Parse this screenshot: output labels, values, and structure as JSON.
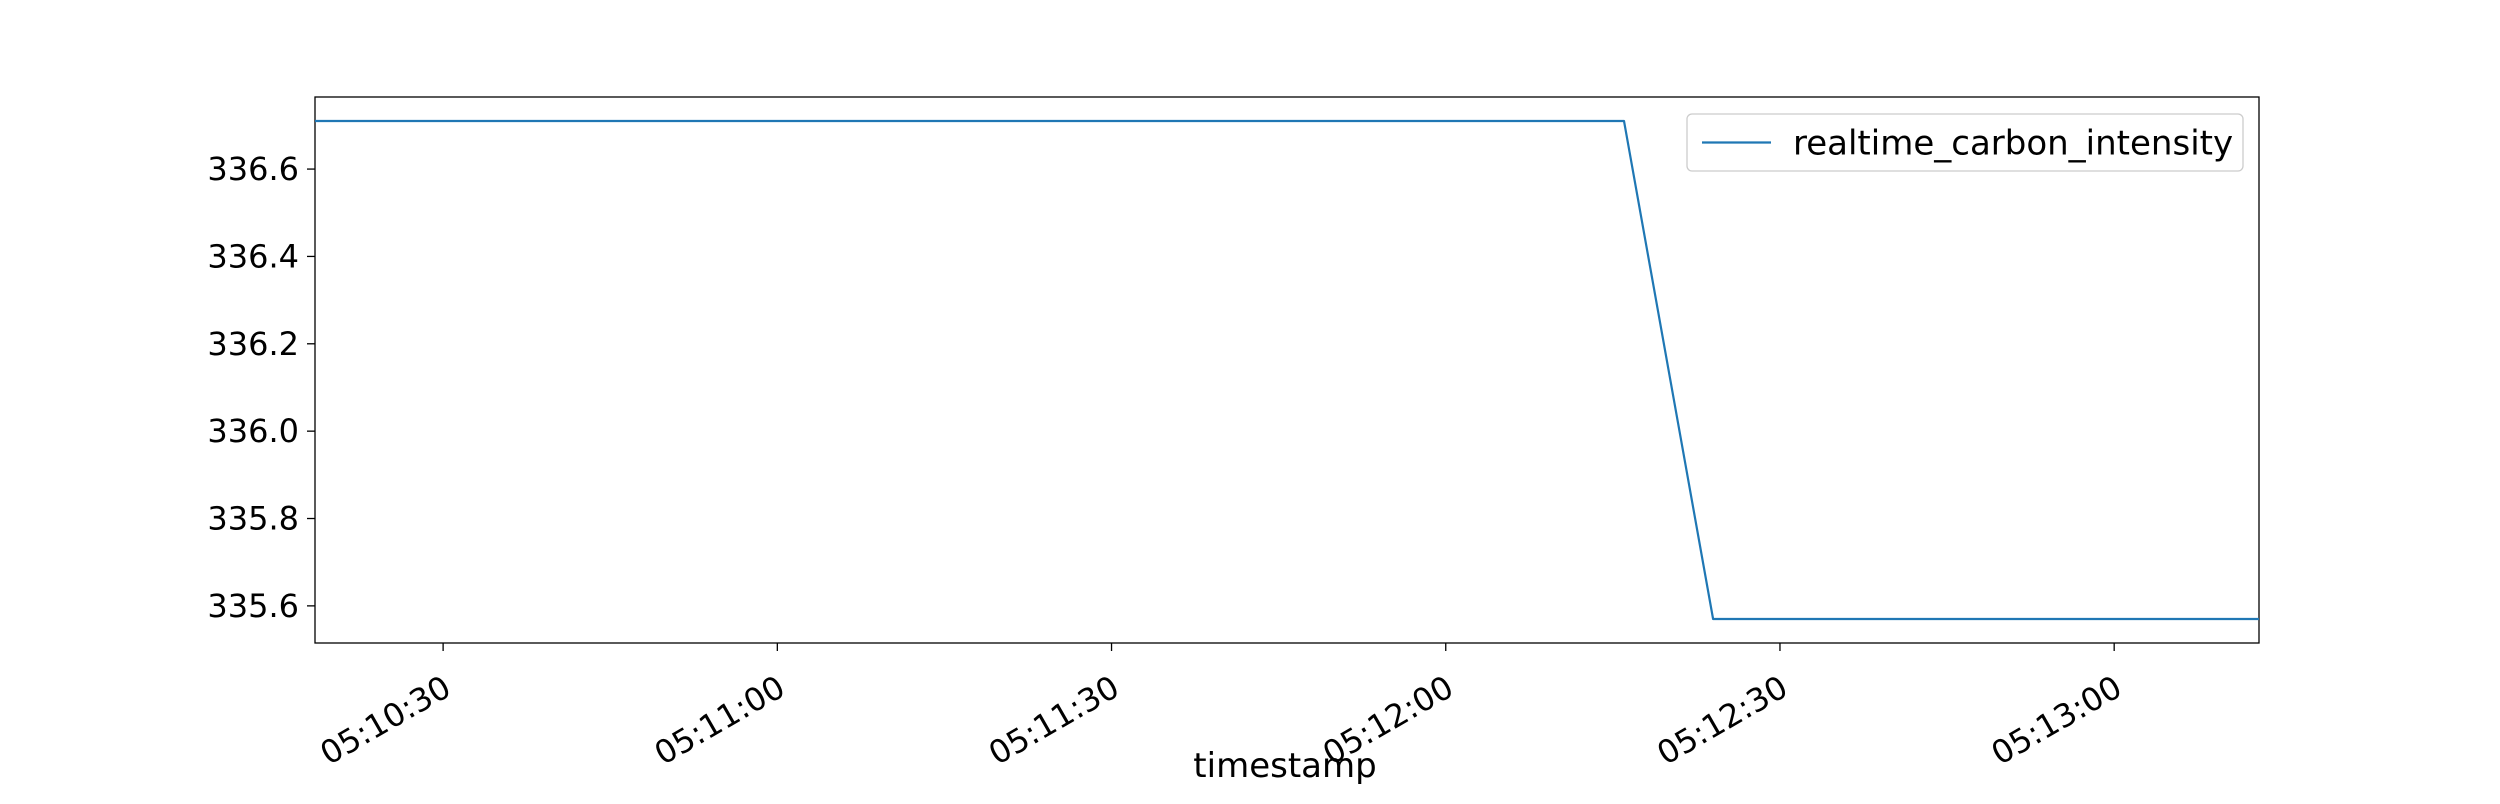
{
  "chart_data": {
    "type": "line",
    "xlabel": "timestamp",
    "ylabel": "",
    "x_tick_labels": [
      "05:10:30",
      "05:11:00",
      "05:11:30",
      "05:12:00",
      "05:12:30",
      "05:13:00"
    ],
    "x_tick_values": [
      "05:10:30",
      "05:11:00",
      "05:11:30",
      "05:12:00",
      "05:12:30",
      "05:13:00"
    ],
    "xlim": [
      "05:10:18.5",
      "05:13:13"
    ],
    "y_tick_labels": [
      "335.6",
      "335.8",
      "336.0",
      "336.2",
      "336.4",
      "336.6"
    ],
    "y_tick_values": [
      335.6,
      335.8,
      336.0,
      336.2,
      336.4,
      336.6
    ],
    "ylim": [
      335.515,
      336.765
    ],
    "grid": false,
    "legend_position": "top-right",
    "series": [
      {
        "name": "realtime_carbon_intensity",
        "color": "#1f77b4",
        "x": [
          "05:10:18.5",
          "05:12:16",
          "05:12:24",
          "05:13:13"
        ],
        "y": [
          336.71,
          336.71,
          335.57,
          335.57
        ]
      }
    ]
  }
}
